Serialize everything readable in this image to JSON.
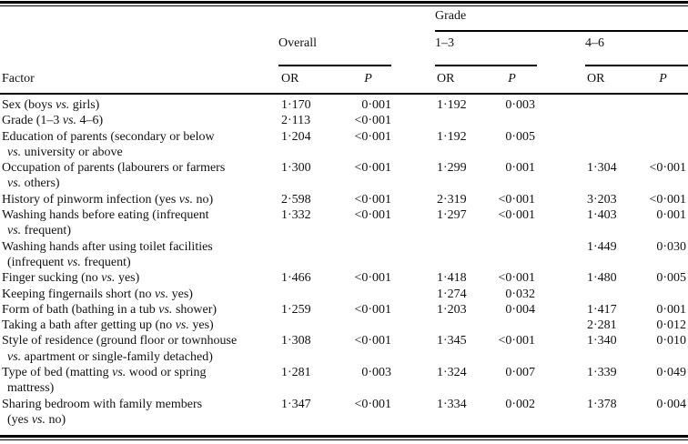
{
  "page": {
    "background_color": "#ffffff",
    "text_color": "#121212"
  },
  "table": {
    "grade_group_label": "Grade",
    "factor_header": "Factor",
    "or_header": "OR",
    "p_header": "P",
    "groups": [
      {
        "label": "Overall"
      },
      {
        "label": "1–3"
      },
      {
        "label": "4–6"
      }
    ],
    "rows": [
      {
        "factor_lines": [
          "Sex (boys vs. girls)"
        ],
        "values": [
          "1·170",
          "0·001",
          "1·192",
          "0·003",
          "",
          ""
        ]
      },
      {
        "factor_lines": [
          "Grade (1–3 vs. 4–6)"
        ],
        "values": [
          "2·113",
          "<0·001",
          "",
          "",
          "",
          ""
        ]
      },
      {
        "factor_lines": [
          "Education of parents (secondary or below",
          "vs. university or above"
        ],
        "values": [
          "1·204",
          "<0·001",
          "1·192",
          "0·005",
          "",
          ""
        ]
      },
      {
        "factor_lines": [
          "Occupation of parents (labourers or farmers",
          "vs. others)"
        ],
        "values": [
          "1·300",
          "<0·001",
          "1·299",
          "0·001",
          "1·304",
          "<0·001"
        ]
      },
      {
        "factor_lines": [
          "History of pinworm infection (yes vs. no)"
        ],
        "values": [
          "2·598",
          "<0·001",
          "2·319",
          "<0·001",
          "3·203",
          "<0·001"
        ]
      },
      {
        "factor_lines": [
          "Washing hands before eating (infrequent",
          "vs. frequent)"
        ],
        "values": [
          "1·332",
          "<0·001",
          "1·297",
          "<0·001",
          "1·403",
          "0·001"
        ]
      },
      {
        "factor_lines": [
          "Washing hands after using toilet facilities",
          "(infrequent vs. frequent)"
        ],
        "values": [
          "",
          "",
          "",
          "",
          "1·449",
          "0·030"
        ]
      },
      {
        "factor_lines": [
          "Finger sucking (no vs. yes)"
        ],
        "values": [
          "1·466",
          "<0·001",
          "1·418",
          "<0·001",
          "1·480",
          "0·005"
        ]
      },
      {
        "factor_lines": [
          "Keeping fingernails short (no vs. yes)"
        ],
        "values": [
          "",
          "",
          "1·274",
          "0·032",
          "",
          ""
        ]
      },
      {
        "factor_lines": [
          "Form of bath (bathing in a tub vs. shower)"
        ],
        "values": [
          "1·259",
          "<0·001",
          "1·203",
          "0·004",
          "1·417",
          "0·001"
        ]
      },
      {
        "factor_lines": [
          "Taking a bath after getting up (no vs. yes)"
        ],
        "values": [
          "",
          "",
          "",
          "",
          "2·281",
          "0·012"
        ]
      },
      {
        "factor_lines": [
          "Style of residence (ground floor or townhouse",
          "vs. apartment or single-family detached)"
        ],
        "values": [
          "1·308",
          "<0·001",
          "1·345",
          "<0·001",
          "1·340",
          "0·010"
        ]
      },
      {
        "factor_lines": [
          "Type of bed (matting vs. wood or spring",
          "mattress)"
        ],
        "values": [
          "1·281",
          "0·003",
          "1·324",
          "0·007",
          "1·339",
          "0·049"
        ]
      },
      {
        "factor_lines": [
          "Sharing bedroom with family members",
          "(yes vs. no)"
        ],
        "values": [
          "1·347",
          "<0·001",
          "1·334",
          "0·002",
          "1·378",
          "0·004"
        ]
      }
    ]
  }
}
